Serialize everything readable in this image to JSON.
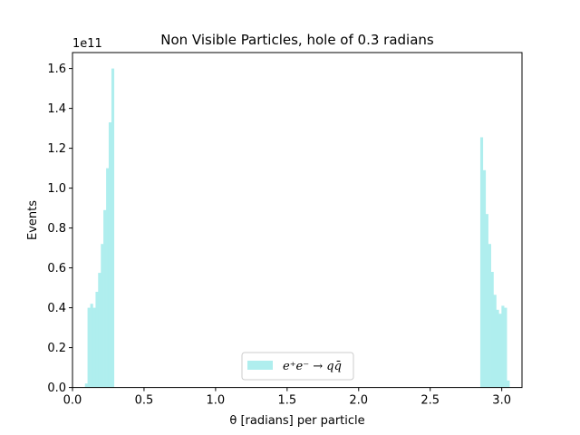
{
  "chart_data": {
    "type": "bar",
    "title": "Non Visible Particles, hole of 0.3 radians",
    "xlabel": "θ [radians] per particle",
    "ylabel": "Events",
    "y_multiplier_label": "1e11",
    "xlim": [
      0.0,
      3.1416
    ],
    "ylim": [
      0.0,
      1.68
    ],
    "xticks": [
      0.0,
      0.5,
      1.0,
      1.5,
      2.0,
      2.5,
      3.0
    ],
    "xtick_labels": [
      "0.0",
      "0.5",
      "1.0",
      "1.5",
      "2.0",
      "2.5",
      "3.0"
    ],
    "yticks": [
      0.0,
      0.2,
      0.4,
      0.6,
      0.8,
      1.0,
      1.2,
      1.4,
      1.6
    ],
    "ytick_labels": [
      "0.0",
      "0.2",
      "0.4",
      "0.6",
      "0.8",
      "1.0",
      "1.2",
      "1.4",
      "1.6"
    ],
    "grid": false,
    "legend_placement": "bottom-center",
    "bar_color": "#afeeee",
    "bins": [
      {
        "x0": 0.087,
        "x1": 0.105,
        "value": 0.02
      },
      {
        "x0": 0.105,
        "x1": 0.124,
        "value": 0.4
      },
      {
        "x0": 0.124,
        "x1": 0.142,
        "value": 0.42
      },
      {
        "x0": 0.142,
        "x1": 0.161,
        "value": 0.4
      },
      {
        "x0": 0.161,
        "x1": 0.179,
        "value": 0.48
      },
      {
        "x0": 0.179,
        "x1": 0.198,
        "value": 0.575
      },
      {
        "x0": 0.198,
        "x1": 0.216,
        "value": 0.72
      },
      {
        "x0": 0.216,
        "x1": 0.235,
        "value": 0.89
      },
      {
        "x0": 0.235,
        "x1": 0.253,
        "value": 1.1
      },
      {
        "x0": 0.253,
        "x1": 0.272,
        "value": 1.33
      },
      {
        "x0": 0.272,
        "x1": 0.29,
        "value": 1.6
      },
      {
        "x0": 2.85,
        "x1": 2.868,
        "value": 1.255
      },
      {
        "x0": 2.868,
        "x1": 2.887,
        "value": 1.09
      },
      {
        "x0": 2.887,
        "x1": 2.905,
        "value": 0.87
      },
      {
        "x0": 2.905,
        "x1": 2.924,
        "value": 0.72
      },
      {
        "x0": 2.924,
        "x1": 2.942,
        "value": 0.58
      },
      {
        "x0": 2.942,
        "x1": 2.961,
        "value": 0.465
      },
      {
        "x0": 2.961,
        "x1": 2.979,
        "value": 0.39
      },
      {
        "x0": 2.979,
        "x1": 2.998,
        "value": 0.37
      },
      {
        "x0": 2.998,
        "x1": 3.016,
        "value": 0.41
      },
      {
        "x0": 3.016,
        "x1": 3.035,
        "value": 0.4
      },
      {
        "x0": 3.035,
        "x1": 3.054,
        "value": 0.035
      }
    ],
    "series": [
      {
        "name": "e⁺e⁻ → qq̄",
        "color": "#afeeee"
      }
    ]
  }
}
